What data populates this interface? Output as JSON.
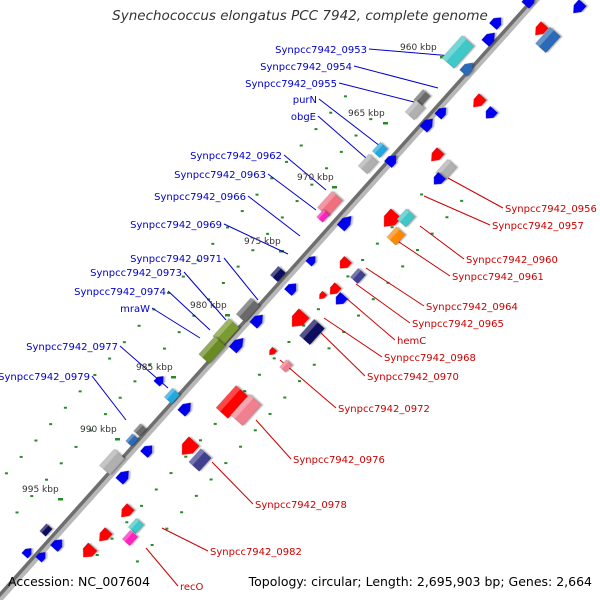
{
  "title": "Synechococcus elongatus PCC 7942, complete genome",
  "footer": {
    "accession": "Accession: NC_007604",
    "summary": "Topology: circular; Length: 2,695,903 bp; Genes: 2,664"
  },
  "colors": {
    "axis": "#6e6e6e",
    "forward_label": "#0000cc",
    "reverse_label": "#cc0000",
    "tick": "#2a8a2a",
    "kbp_label": "#333333"
  },
  "kbp_ticks": [
    "960 kbp",
    "965 kbp",
    "970 kbp",
    "975 kbp",
    "980 kbp",
    "985 kbp",
    "990 kbp",
    "995 kbp"
  ],
  "forward_genes": [
    "Synpcc7942_0953",
    "Synpcc7942_0954",
    "Synpcc7942_0955",
    "purN",
    "obgE",
    "Synpcc7942_0962",
    "Synpcc7942_0963",
    "Synpcc7942_0966",
    "Synpcc7942_0969",
    "Synpcc7942_0971",
    "Synpcc7942_0973",
    "Synpcc7942_0974",
    "mraW",
    "Synpcc7942_0977",
    "Synpcc7942_0979"
  ],
  "reverse_genes": [
    "Synpcc7942_0956",
    "Synpcc7942_0957",
    "Synpcc7942_0960",
    "Synpcc7942_0961",
    "Synpcc7942_0964",
    "Synpcc7942_0965",
    "hemC",
    "Synpcc7942_0968",
    "Synpcc7942_0970",
    "Synpcc7942_0972",
    "Synpcc7942_0976",
    "Synpcc7942_0978",
    "Synpcc7942_0982",
    "recO"
  ]
}
